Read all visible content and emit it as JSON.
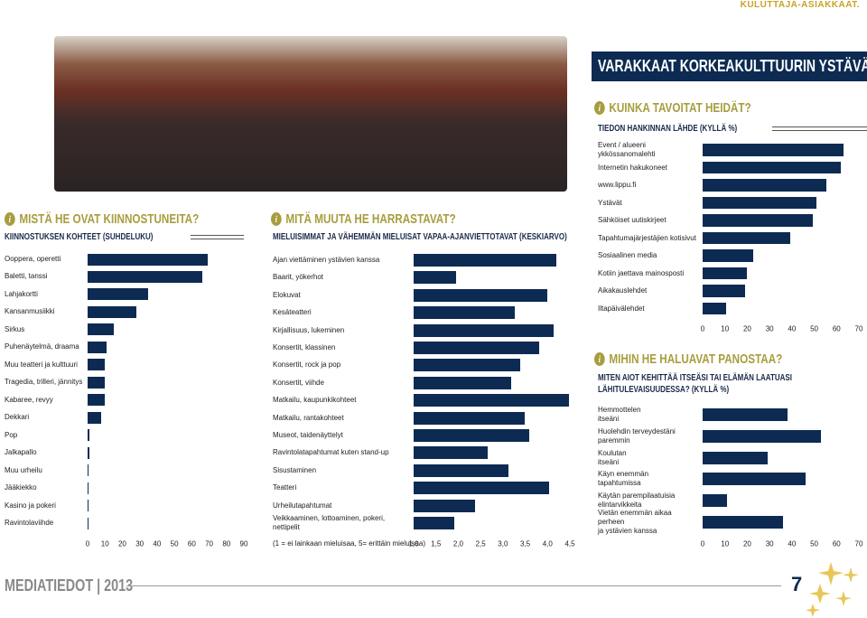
{
  "header": {
    "section": "KULUTTAJA-ASIAKKAAT.",
    "banner": "VARAKKAAT KORKEAKULTTUURIN YSTÄVÄT"
  },
  "footer": {
    "publication": "MEDIATIEDOT | 2013",
    "page": 7
  },
  "chart_data": [
    {
      "type": "hbar",
      "heading": "MISTÄ HE OVAT KIINNOSTUNEITA?",
      "title": "KIINNOSTUKSEN KOHTEET (SUHDELUKU)",
      "categories": [
        "Ooppera, operetti",
        "Baletti, tanssi",
        "Lahjakortti",
        "Kansanmusiikki",
        "Sirkus",
        "Puhenäytelmä, draama",
        "Muu teatteri ja kulttuuri",
        "Tragedia, trilleri, jännitys",
        "Kabaree, revyy",
        "Dekkari",
        "Pop",
        "Jalkapallo",
        "Muu urheilu",
        "Jääkiekko",
        "Kasino ja pokeri",
        "Ravintolaviihde"
      ],
      "values": [
        69,
        66,
        35,
        28,
        15,
        11,
        10,
        10,
        10,
        8,
        1,
        1,
        0.5,
        0.3,
        0.2,
        0.1
      ],
      "color": "#0d2b52",
      "xlim": [
        0,
        90
      ],
      "xticks": [
        0,
        10,
        20,
        30,
        40,
        50,
        60,
        70,
        80,
        90
      ]
    },
    {
      "type": "hbar",
      "heading": "MITÄ MUUTA HE HARRASTAVAT?",
      "title": "MIELUISIMMAT JA VÄHEMMÄN MIELUISAT VAPAA-AJANVIETTOTAVAT (KESKIARVO)",
      "xlabel": "(1 = ei lainkaan mieluisaa, 5= erittäin mieluisaa)",
      "categories": [
        "Ajan viettäminen ystävien kanssa",
        "Baarit, yökerhot",
        "Elokuvat",
        "Kesäteatteri",
        "Kirjallisuus, lukeminen",
        "Konsertit, klassinen",
        "Konsertit, rock ja pop",
        "Konsertit, viihde",
        "Matkailu, kaupunkikohteet",
        "Matkailu, rantakohteet",
        "Museot, taidenäyttelyt",
        "Ravintolatapahtumat kuten stand-up",
        "Sisustaminen",
        "Teatteri",
        "Urheilutapahtumat",
        "Veikkaaminen, lottoaminen, pokeri, nettipelit"
      ],
      "values": [
        4.2,
        1.95,
        4.0,
        3.27,
        4.14,
        3.81,
        3.39,
        3.19,
        4.48,
        3.49,
        3.59,
        2.66,
        3.13,
        4.03,
        2.38,
        1.91
      ],
      "color": "#0d2b52",
      "xlim": [
        1,
        4.5
      ],
      "xticks": [
        {
          "value": 1,
          "label": "1,0"
        },
        {
          "value": 1.5,
          "label": "1,5"
        },
        {
          "value": 2,
          "label": "2,0"
        },
        {
          "value": 2.5,
          "label": "2,5"
        },
        {
          "value": 3,
          "label": "3,0"
        },
        {
          "value": 3.5,
          "label": "3,5"
        },
        {
          "value": 4,
          "label": "4,0"
        },
        {
          "value": 4.5,
          "label": "4,5"
        }
      ]
    },
    {
      "type": "hbar",
      "heading": "KUINKA TAVOITAT HEIDÄT?",
      "title": "TIEDON HANKINNAN LÄHDE (KYLLÄ %)",
      "categories": [
        "Event / alueeni ykkössanomalehti",
        "Internetin hakukoneet",
        "www.lippu.fi",
        "Ystävät",
        "Sähköiset uutiskirjeet",
        "Tapahtumajärjestäjien kotisivut",
        "Sosiaalinen media",
        "Kotiin jaettava mainosposti",
        "Aikakauslehdet",
        "Iltapäivälehdet"
      ],
      "values": [
        63,
        62,
        55.5,
        51,
        49.4,
        39.3,
        22.7,
        19.8,
        19,
        10.5
      ],
      "color": "#0d2b52",
      "xlim": [
        0,
        70
      ],
      "xticks": [
        0,
        10,
        20,
        30,
        40,
        50,
        60,
        70
      ]
    },
    {
      "type": "hbar",
      "heading": "MIHIN HE HALUAVAT PANOSTAA?",
      "title": "MITEN AIOT KEHITTÄÄ ITSEÄSI TAI ELÄMÄN LAATUASI LÄHITULEVAISUUDESSA? (KYLLÄ %)",
      "categories": [
        "Hemmottelen\nitseäni",
        "Huolehdin terveydestäni\nparemmin",
        "Koulutan\nitseäni",
        "Käyn enemmän\ntapahtumissa",
        "Käytän parempilaatuisia\nelintarvikkeita",
        "Vietän enemmän aikaa perheen\nja ystävien kanssa"
      ],
      "values": [
        38,
        53,
        29,
        46,
        11,
        36
      ],
      "color": "#0d2b52",
      "xlim": [
        0,
        70
      ],
      "xticks": [
        0,
        10,
        20,
        30,
        40,
        50,
        60,
        70
      ]
    }
  ]
}
